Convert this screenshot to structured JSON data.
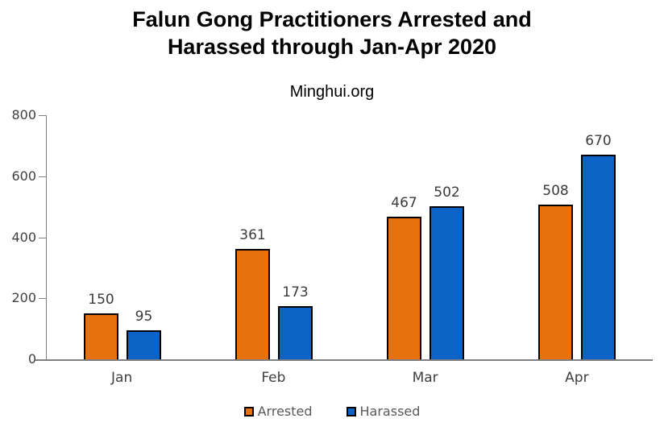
{
  "header": {
    "title_line1": "Falun Gong Practitioners Arrested and",
    "title_line2": "Harassed through Jan-Apr 2020",
    "subtitle": "Minghui.org"
  },
  "chart_data": {
    "type": "bar",
    "title": "Falun Gong Practitioners Arrested and Harassed through Jan-Apr 2020",
    "subtitle": "Minghui.org",
    "categories": [
      "Jan",
      "Feb",
      "Mar",
      "Apr"
    ],
    "series": [
      {
        "name": "Arrested",
        "color": "#E6710D",
        "values": [
          150,
          361,
          467,
          508
        ]
      },
      {
        "name": "Harassed",
        "color": "#0B63C5",
        "values": [
          95,
          173,
          502,
          670
        ]
      }
    ],
    "xlabel": "",
    "ylabel": "",
    "ylim": [
      0,
      800
    ],
    "yticks": [
      0,
      200,
      400,
      600,
      800
    ],
    "grid": false,
    "data_labels": true,
    "legend_position": "bottom",
    "bar_outline_color": "#000000",
    "axis_color": "#808080",
    "label_color": "#3f3f3f"
  }
}
